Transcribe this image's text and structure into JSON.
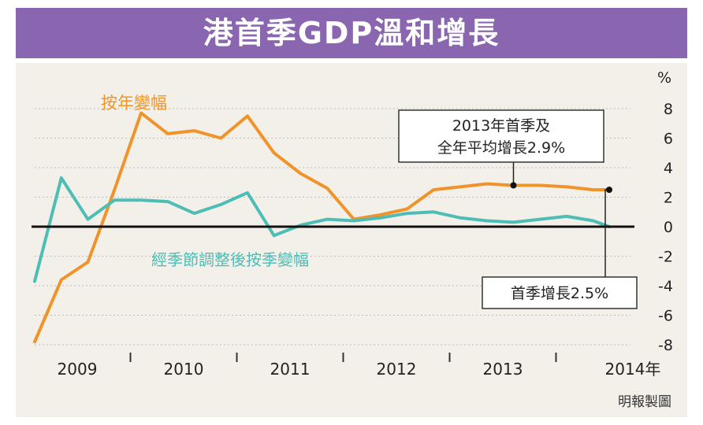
{
  "title": "港首季GDP溫和增長",
  "source": "明報製圖",
  "colors": {
    "title_bg": "#8a66b0",
    "panel_bg": "#f2f0e8",
    "yoy": "#f0932b",
    "qoq": "#4dbdb6",
    "zero_line": "#111111",
    "grid": "#bdbdbd"
  },
  "chart_data": {
    "type": "line",
    "ylabel": "%",
    "ylim": [
      -8,
      8
    ],
    "yticks": [
      "8",
      "6",
      "4",
      "2",
      "0",
      "-2",
      "-4",
      "-6",
      "-8"
    ],
    "xlim": [
      0.6,
      6.2
    ],
    "year_labels": [
      "2009",
      "2010",
      "2011",
      "2012",
      "2013",
      "2014年"
    ],
    "annotations": {
      "callout_2013": [
        "2013年首季及",
        "全年平均增長2.9%"
      ],
      "callout_q1": "首季增長2.5%"
    },
    "series": [
      {
        "name": "按年變幅",
        "x": [
          0.6,
          0.85,
          1.1,
          1.35,
          1.6,
          1.85,
          2.1,
          2.35,
          2.6,
          2.85,
          3.1,
          3.35,
          3.6,
          3.85,
          4.1,
          4.35,
          4.6,
          4.85,
          5.1,
          5.35,
          5.6,
          5.85,
          6.0
        ],
        "values": [
          -7.8,
          -3.6,
          -2.4,
          2.5,
          7.7,
          6.3,
          6.5,
          6.0,
          7.5,
          5.0,
          3.6,
          2.6,
          0.5,
          0.8,
          1.2,
          2.5,
          2.7,
          2.9,
          2.8,
          2.8,
          2.7,
          2.5,
          2.5
        ]
      },
      {
        "name": "經季節調整後按季變幅",
        "x": [
          0.6,
          0.85,
          1.1,
          1.35,
          1.6,
          1.85,
          2.1,
          2.35,
          2.6,
          2.85,
          3.1,
          3.35,
          3.6,
          3.85,
          4.1,
          4.35,
          4.6,
          4.85,
          5.1,
          5.35,
          5.6,
          5.85,
          6.0
        ],
        "values": [
          -3.7,
          3.3,
          0.5,
          1.8,
          1.8,
          1.7,
          0.9,
          1.5,
          2.3,
          -0.6,
          0.1,
          0.5,
          0.4,
          0.6,
          0.9,
          1.0,
          0.6,
          0.4,
          0.3,
          0.5,
          0.7,
          0.4,
          0.0
        ]
      }
    ],
    "markers": [
      {
        "x": 5.1,
        "value": 2.8
      },
      {
        "x": 6.0,
        "value": 2.5
      }
    ]
  }
}
